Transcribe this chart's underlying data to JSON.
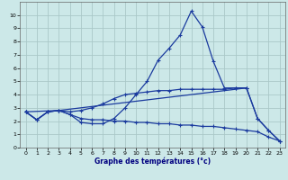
{
  "xlabel": "Graphe des températures (°c)",
  "background_color": "#cce8e8",
  "line_color": "#1a3a9e",
  "grid_color": "#aac8c8",
  "xlim": [
    -0.5,
    23.5
  ],
  "ylim": [
    0,
    11
  ],
  "xticks": [
    0,
    1,
    2,
    3,
    4,
    5,
    6,
    7,
    8,
    9,
    10,
    11,
    12,
    13,
    14,
    15,
    16,
    17,
    18,
    19,
    20,
    21,
    22,
    23
  ],
  "yticks": [
    0,
    1,
    2,
    3,
    4,
    5,
    6,
    7,
    8,
    9,
    10
  ],
  "curves": [
    {
      "x": [
        0,
        1,
        2,
        3,
        4,
        5,
        6,
        7,
        8,
        9,
        10,
        11,
        12,
        13,
        14,
        15,
        16,
        17,
        18,
        19,
        20
      ],
      "y": [
        2.7,
        2.1,
        2.7,
        2.8,
        2.5,
        1.9,
        1.8,
        1.8,
        2.2,
        3.0,
        4.0,
        5.0,
        6.6,
        7.5,
        8.5,
        10.3,
        9.1,
        6.5,
        4.5,
        4.5,
        4.5
      ]
    },
    {
      "x": [
        0,
        1,
        2,
        3,
        4,
        5,
        6,
        7,
        8,
        9,
        10,
        11,
        12,
        13,
        14,
        15,
        16,
        17,
        18,
        19,
        20,
        21,
        22,
        23
      ],
      "y": [
        2.7,
        2.1,
        2.7,
        2.8,
        2.7,
        2.8,
        3.0,
        3.3,
        3.7,
        4.0,
        4.1,
        4.2,
        4.3,
        4.3,
        4.4,
        4.4,
        4.4,
        4.4,
        4.4,
        4.5,
        4.5,
        2.2,
        1.3,
        0.5
      ]
    },
    {
      "x": [
        0,
        1,
        2,
        3,
        4,
        5,
        6,
        7,
        8,
        9,
        10,
        11,
        12,
        13,
        14,
        15,
        16,
        17,
        18,
        19,
        20,
        21,
        22,
        23
      ],
      "y": [
        2.7,
        2.1,
        2.7,
        2.8,
        2.5,
        2.2,
        2.1,
        2.1,
        2.0,
        2.0,
        1.9,
        1.9,
        1.8,
        1.8,
        1.7,
        1.7,
        1.6,
        1.6,
        1.5,
        1.4,
        1.3,
        1.2,
        0.8,
        0.5
      ]
    },
    {
      "x": [
        0,
        3,
        20,
        21,
        22,
        23
      ],
      "y": [
        2.7,
        2.8,
        4.5,
        2.2,
        1.3,
        0.5
      ]
    }
  ],
  "marker": "+",
  "markersize": 3,
  "linewidth": 0.9,
  "tick_fontsize": 4.5,
  "xlabel_fontsize": 5.5
}
